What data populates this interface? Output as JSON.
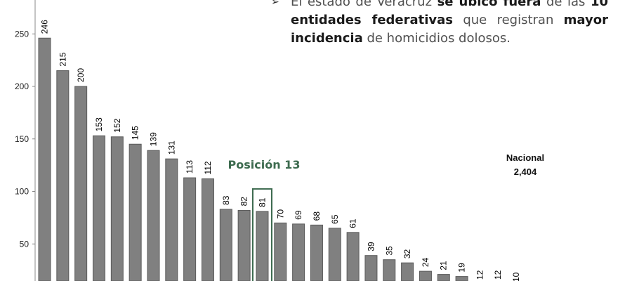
{
  "callout": {
    "bullet": "➢",
    "t1": "El estado de Veracruz ",
    "t2": "se ubicó fuera",
    "t3": " de las ",
    "t4": "10",
    "t5": "entidades federativas",
    "t6": " que registran ",
    "t7": "mayor",
    "t8": "incidencia",
    "t9": " de homicidios dolosos."
  },
  "highlight_label": "Posición 13",
  "national": {
    "label": "Nacional",
    "value": "2,404"
  },
  "colors": {
    "bar": "#808080",
    "bar_edge": "#5a5a5a",
    "highlight": "#3d6b4f",
    "text": "#000000"
  },
  "chart_data": {
    "type": "bar",
    "values": [
      246,
      215,
      200,
      153,
      152,
      145,
      139,
      131,
      113,
      112,
      83,
      82,
      81,
      70,
      69,
      68,
      65,
      61,
      39,
      35,
      32,
      24,
      21,
      19,
      12,
      12,
      10
    ],
    "highlight_index": 12,
    "y_ticks": [
      50,
      100,
      150,
      200,
      250
    ],
    "grid": false
  }
}
